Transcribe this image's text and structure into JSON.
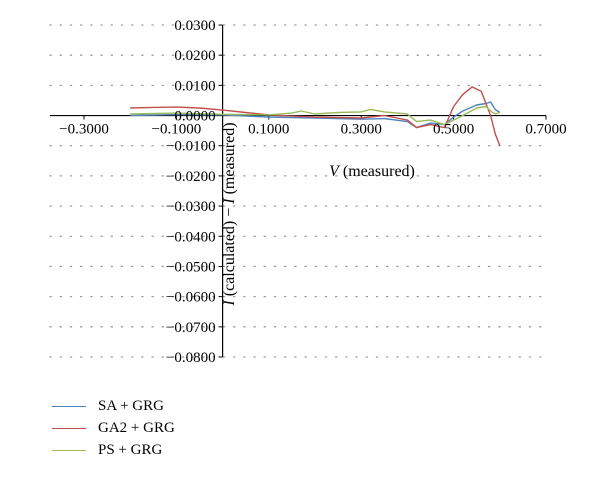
{
  "chart_data": {
    "type": "line",
    "title": "",
    "xlabel": {
      "italic": "V",
      "rest": " (measured)"
    },
    "ylabel": {
      "italic1": "I",
      "mid": " (calculated) − ",
      "italic2": "I",
      "rest": " (measured)"
    },
    "xlim": [
      -0.3,
      0.7
    ],
    "ylim": [
      -0.08,
      0.03
    ],
    "x_ticks": [
      -0.3,
      -0.1,
      0.1,
      0.3,
      0.5,
      0.7
    ],
    "x_tick_labels": [
      "−0.3000",
      "−0.1000",
      "0.1000",
      "0.3000",
      "0.5000",
      "0.7000"
    ],
    "y_ticks": [
      0.03,
      0.02,
      0.01,
      0.0,
      -0.01,
      -0.02,
      -0.03,
      -0.04,
      -0.05,
      -0.06,
      -0.07,
      -0.08
    ],
    "y_tick_labels": [
      "0.0300",
      "0.0200",
      "0.0100",
      "0.0000",
      "−0.0100",
      "−0.0200",
      "−0.0300",
      "−0.0400",
      "−0.0500",
      "−0.0600",
      "−0.0700",
      "−0.0800"
    ],
    "grid": "dotted-horizontal",
    "legend_position": "bottom-left",
    "series": [
      {
        "name": "SA + GRG",
        "color": "#4f81bd",
        "x": [
          -0.2,
          -0.1,
          0.0,
          0.1,
          0.2,
          0.3,
          0.35,
          0.4,
          0.42,
          0.45,
          0.48,
          0.5,
          0.52,
          0.55,
          0.57,
          0.58,
          0.59,
          0.6
        ],
        "y": [
          0.0,
          0.0003,
          0.0002,
          -0.0005,
          -0.0008,
          -0.0012,
          -0.001,
          -0.002,
          -0.004,
          -0.0025,
          -0.003,
          -0.0005,
          0.0015,
          0.0035,
          0.004,
          0.0045,
          0.002,
          0.001
        ]
      },
      {
        "name": "GA2 + GRG",
        "color": "#c0504d",
        "x": [
          -0.2,
          -0.15,
          -0.1,
          -0.05,
          0.0,
          0.05,
          0.1,
          0.2,
          0.3,
          0.35,
          0.4,
          0.42,
          0.45,
          0.48,
          0.5,
          0.52,
          0.54,
          0.56,
          0.57,
          0.58,
          0.59,
          0.6
        ],
        "y": [
          0.0025,
          0.0027,
          0.0028,
          0.0025,
          0.0018,
          0.001,
          0.0002,
          -0.0005,
          -0.0008,
          0.0,
          -0.0015,
          -0.004,
          -0.003,
          -0.004,
          0.003,
          0.007,
          0.0095,
          0.008,
          0.004,
          0.0,
          -0.006,
          -0.01
        ]
      },
      {
        "name": "PS + GRG",
        "color": "#9bbb59",
        "x": [
          -0.2,
          -0.1,
          0.0,
          0.1,
          0.15,
          0.17,
          0.2,
          0.25,
          0.3,
          0.32,
          0.35,
          0.4,
          0.42,
          0.45,
          0.48,
          0.5,
          0.52,
          0.55,
          0.57,
          0.58,
          0.59,
          0.6
        ],
        "y": [
          0.0005,
          0.0008,
          0.0004,
          0.0002,
          0.0008,
          0.0015,
          0.0005,
          0.001,
          0.0012,
          0.002,
          0.0012,
          0.0005,
          -0.002,
          -0.0015,
          -0.003,
          -0.0015,
          0.0,
          0.0025,
          0.003,
          0.0015,
          0.0005,
          0.001
        ]
      }
    ]
  }
}
